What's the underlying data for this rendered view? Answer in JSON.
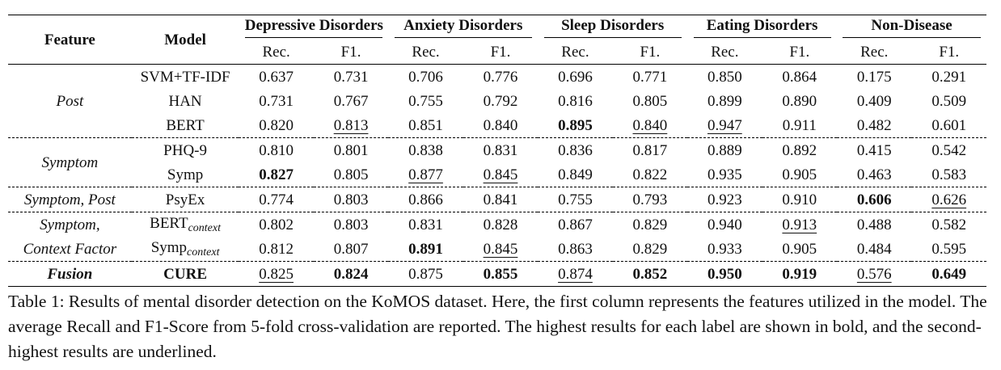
{
  "table": {
    "header": {
      "feature": "Feature",
      "model": "Model",
      "groups": [
        "Depressive Disorders",
        "Anxiety Disorders",
        "Sleep Disorders",
        "Eating Disorders",
        "Non-Disease"
      ],
      "sub": [
        "Rec.",
        "F1."
      ]
    },
    "rows": [
      {
        "feature": "Post",
        "model": "SVM+TF-IDF",
        "model_sub": "",
        "values": [
          "0.637",
          "0.731",
          "0.706",
          "0.776",
          "0.696",
          "0.771",
          "0.850",
          "0.864",
          "0.175",
          "0.291"
        ]
      },
      {
        "feature": "",
        "model": "HAN",
        "model_sub": "",
        "values": [
          "0.731",
          "0.767",
          "0.755",
          "0.792",
          "0.816",
          "0.805",
          "0.899",
          "0.890",
          "0.409",
          "0.509"
        ]
      },
      {
        "feature": "",
        "model": "BERT",
        "model_sub": "",
        "values": [
          "0.820",
          "0.813",
          "0.851",
          "0.840",
          "0.895",
          "0.840",
          "0.947",
          "0.911",
          "0.482",
          "0.601"
        ]
      },
      {
        "feature": "Symptom",
        "model": "PHQ-9",
        "model_sub": "",
        "values": [
          "0.810",
          "0.801",
          "0.838",
          "0.831",
          "0.836",
          "0.817",
          "0.889",
          "0.892",
          "0.415",
          "0.542"
        ]
      },
      {
        "feature": "",
        "model": "Symp",
        "model_sub": "",
        "values": [
          "0.827",
          "0.805",
          "0.877",
          "0.845",
          "0.849",
          "0.822",
          "0.935",
          "0.905",
          "0.463",
          "0.583"
        ]
      },
      {
        "feature": "Symptom, Post",
        "model": "PsyEx",
        "model_sub": "",
        "values": [
          "0.774",
          "0.803",
          "0.866",
          "0.841",
          "0.755",
          "0.793",
          "0.923",
          "0.910",
          "0.606",
          "0.626"
        ]
      },
      {
        "feature": "Symptom,",
        "model": "BERT",
        "model_sub": "context",
        "values": [
          "0.802",
          "0.803",
          "0.831",
          "0.828",
          "0.867",
          "0.829",
          "0.940",
          "0.913",
          "0.488",
          "0.582"
        ]
      },
      {
        "feature": "Context Factor",
        "model": "Symp",
        "model_sub": "context",
        "values": [
          "0.812",
          "0.807",
          "0.891",
          "0.845",
          "0.863",
          "0.829",
          "0.933",
          "0.905",
          "0.484",
          "0.595"
        ]
      },
      {
        "feature": "Fusion",
        "model": "CURE",
        "model_sub": "",
        "values": [
          "0.825",
          "0.824",
          "0.875",
          "0.855",
          "0.874",
          "0.852",
          "0.950",
          "0.919",
          "0.576",
          "0.649"
        ]
      }
    ]
  },
  "caption": "Table 1: Results of mental disorder detection on the KoMOS dataset. Here, the first column represents the features utilized in the model. The average Recall and F1-Score from 5-fold cross-validation are reported. The highest results for each label are shown in bold, and the second-highest results are underlined."
}
